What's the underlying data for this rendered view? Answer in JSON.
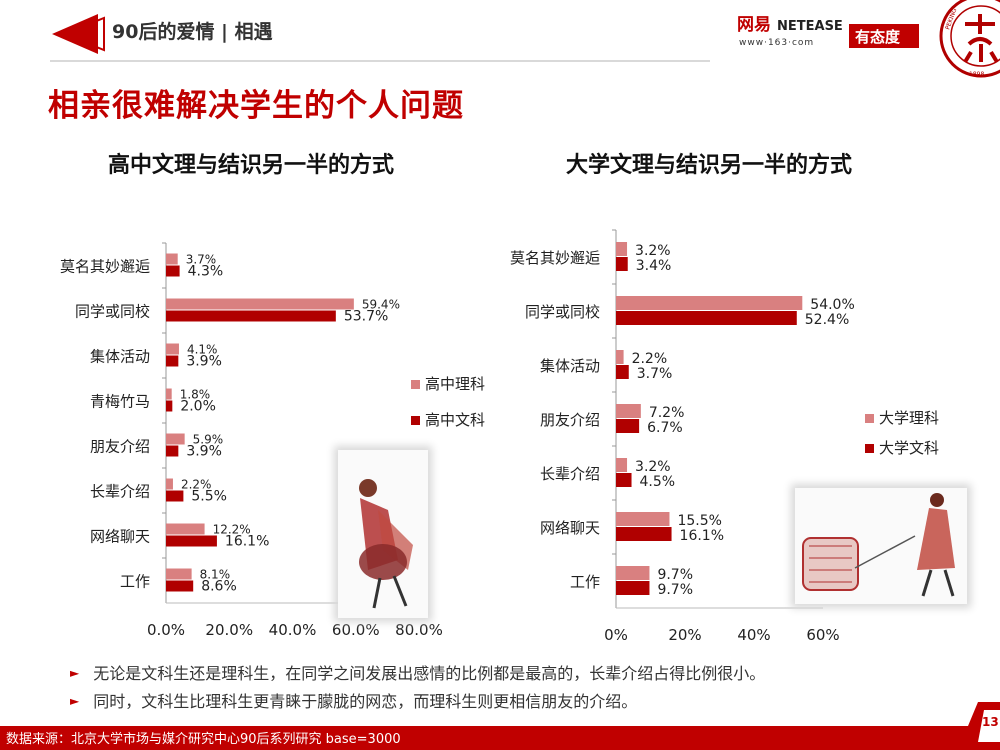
{
  "header": {
    "title": "90后的爱情 | 相遇"
  },
  "main_title": "相亲很难解决学生的个人问题",
  "logo": {
    "brand_cn": "网易",
    "brand_en": "NETEASE",
    "url": "www·163·com",
    "slogan": "有态度"
  },
  "seal": {
    "text_top": "PEKING",
    "year": "1898"
  },
  "bullets": [
    "无论是文科生还是理科生，在同学之间发展出感情的比例都是最高的，长辈介绍占得比例很小。",
    "同时，文科生比理科生更青睐于朦胧的网恋，而理科生则更相信朋友的介绍。"
  ],
  "footer": {
    "source": "数据来源：北京大学市场与媒介研究中心90后系列研究 base=3000",
    "page_number": "13"
  },
  "colors": {
    "accent": "#c00000",
    "series_light": "#d98080",
    "series_dark": "#b00000"
  },
  "chart_data": [
    {
      "type": "bar",
      "orientation": "horizontal",
      "title": "高中文理与结识另一半的方式",
      "categories": [
        "莫名其妙邂逅",
        "同学或同校",
        "集体活动",
        "青梅竹马",
        "朋友介绍",
        "长辈介绍",
        "网络聊天",
        "工作"
      ],
      "series": [
        {
          "name": "高中理科",
          "values": [
            3.7,
            59.4,
            4.1,
            1.8,
            5.9,
            2.2,
            12.2,
            8.1
          ],
          "labels": [
            "3.7%",
            "59.4%",
            "4.1%",
            "1.8%",
            "5.9%",
            "2.2%",
            "12.2%",
            "8.1%"
          ]
        },
        {
          "name": "高中文科",
          "values": [
            4.3,
            53.7,
            3.9,
            2.0,
            3.9,
            5.5,
            16.1,
            8.6
          ],
          "labels": [
            "4.3%",
            "53.7%",
            "3.9%",
            "2.0%",
            "3.9%",
            "5.5%",
            "16.1%",
            "8.6%"
          ]
        }
      ],
      "xlim": [
        0,
        80
      ],
      "xticks": [
        "0.0%",
        "20.0%",
        "40.0%",
        "60.0%",
        "80.0%"
      ],
      "legend": "right"
    },
    {
      "type": "bar",
      "orientation": "horizontal",
      "title": "大学文理与结识另一半的方式",
      "categories": [
        "莫名其妙邂逅",
        "同学或同校",
        "集体活动",
        "朋友介绍",
        "长辈介绍",
        "网络聊天",
        "工作"
      ],
      "series": [
        {
          "name": "大学理科",
          "values": [
            3.2,
            54.0,
            2.2,
            7.2,
            3.2,
            15.5,
            9.7
          ],
          "labels": [
            "3.2%",
            "54.0%",
            "2.2%",
            "7.2%",
            "3.2%",
            "15.5%",
            "9.7%"
          ]
        },
        {
          "name": "大学文科",
          "values": [
            3.4,
            52.4,
            3.7,
            6.7,
            4.5,
            16.1,
            9.7
          ],
          "labels": [
            "3.4%",
            "52.4%",
            "3.7%",
            "6.7%",
            "4.5%",
            "16.1%",
            "9.7%"
          ]
        }
      ],
      "xlim": [
        0,
        60
      ],
      "xticks": [
        "0%",
        "20%",
        "40%",
        "60%"
      ],
      "legend": "right"
    }
  ]
}
